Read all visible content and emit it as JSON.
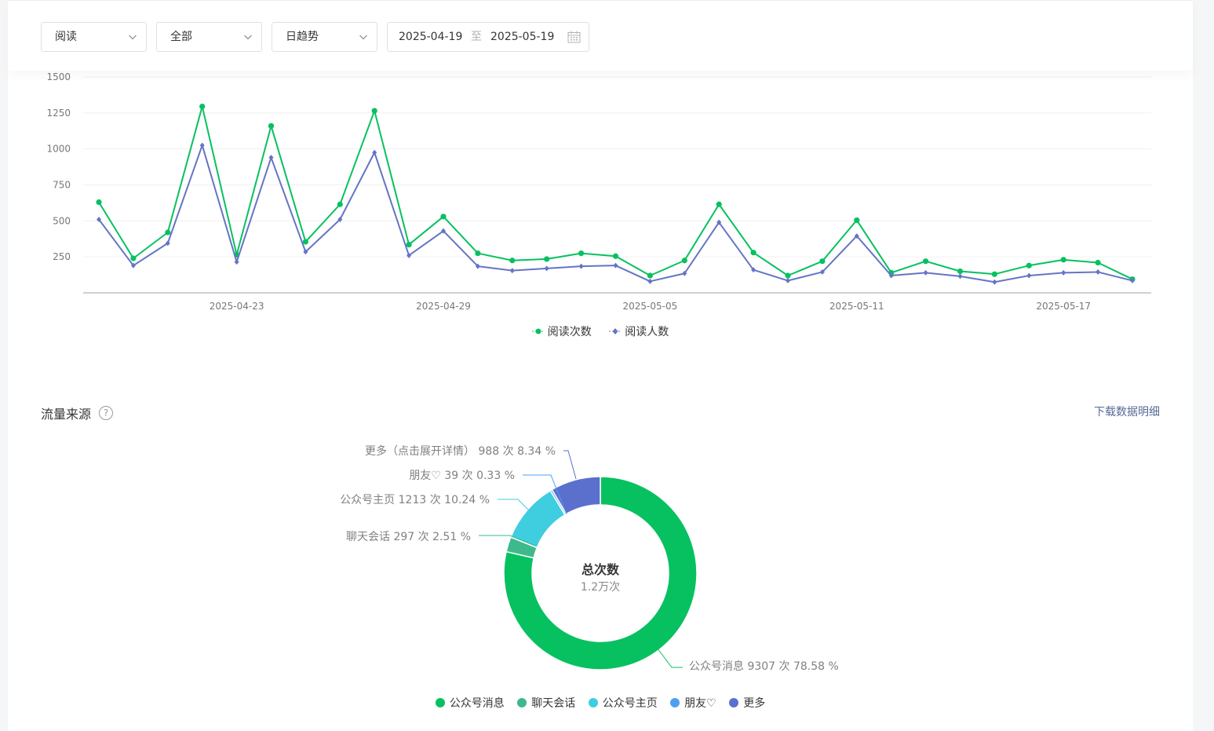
{
  "filters": {
    "metric": "阅读",
    "scope": "全部",
    "period": "日趋势",
    "date_start": "2025-04-19",
    "date_sep": "至",
    "date_end": "2025-05-19"
  },
  "colors": {
    "green": "#07c160",
    "purple": "#6574c4",
    "teal": "#3eb98b",
    "cyan": "#3fcde0",
    "blue": "#4e9ff0",
    "indigo": "#5b6fcd",
    "link": "#576b95"
  },
  "chart_data": [
    {
      "type": "line",
      "x": [
        "2025-04-19",
        "2025-04-20",
        "2025-04-21",
        "2025-04-22",
        "2025-04-23",
        "2025-04-24",
        "2025-04-25",
        "2025-04-26",
        "2025-04-27",
        "2025-04-28",
        "2025-04-29",
        "2025-04-30",
        "2025-05-01",
        "2025-05-02",
        "2025-05-03",
        "2025-05-04",
        "2025-05-05",
        "2025-05-06",
        "2025-05-07",
        "2025-05-08",
        "2025-05-09",
        "2025-05-10",
        "2025-05-11",
        "2025-05-12",
        "2025-05-13",
        "2025-05-14",
        "2025-05-15",
        "2025-05-16",
        "2025-05-17",
        "2025-05-18",
        "2025-05-19"
      ],
      "x_ticks": [
        "2025-04-23",
        "2025-04-29",
        "2025-05-05",
        "2025-05-11",
        "2025-05-17"
      ],
      "y_ticks": [
        250,
        500,
        750,
        1000,
        1250,
        1500
      ],
      "ylim": [
        0,
        1500
      ],
      "grid": true,
      "legend": "bottom",
      "series": [
        {
          "name": "阅读次数",
          "color": "#07c160",
          "marker": "circle",
          "values": [
            630,
            240,
            420,
            1295,
            265,
            1160,
            355,
            615,
            1265,
            335,
            530,
            275,
            225,
            235,
            275,
            255,
            120,
            225,
            615,
            280,
            120,
            220,
            505,
            140,
            220,
            150,
            130,
            190,
            230,
            210,
            95
          ]
        },
        {
          "name": "阅读人数",
          "color": "#6574c4",
          "marker": "diamond",
          "values": [
            510,
            190,
            345,
            1025,
            215,
            940,
            285,
            510,
            975,
            260,
            430,
            185,
            155,
            170,
            185,
            190,
            80,
            135,
            490,
            160,
            85,
            145,
            395,
            120,
            140,
            115,
            75,
            120,
            140,
            145,
            85
          ]
        }
      ]
    },
    {
      "type": "pie",
      "title": "总次数",
      "total_label": "1.2万次",
      "legend": "bottom",
      "slices": [
        {
          "name": "公众号消息",
          "value": 9307,
          "percent": 78.58,
          "color": "#07c160",
          "label": "公众号消息 9307 次 78.58 %"
        },
        {
          "name": "聊天会话",
          "value": 297,
          "percent": 2.51,
          "color": "#3eb98b",
          "label": "聊天会话 297 次 2.51 %"
        },
        {
          "name": "公众号主页",
          "value": 1213,
          "percent": 10.24,
          "color": "#3fcde0",
          "label": "公众号主页 1213 次 10.24 %"
        },
        {
          "name": "朋友♡",
          "value": 39,
          "percent": 0.33,
          "color": "#4e9ff0",
          "label": "朋友♡ 39 次 0.33 %"
        },
        {
          "name": "更多",
          "value": 988,
          "percent": 8.34,
          "color": "#5b6fcd",
          "label": "更多（点击展开详情） 988 次 8.34 %"
        }
      ]
    }
  ],
  "traffic": {
    "section_title": "流量来源",
    "help_icon": "?",
    "download_label": "下载数据明细"
  }
}
